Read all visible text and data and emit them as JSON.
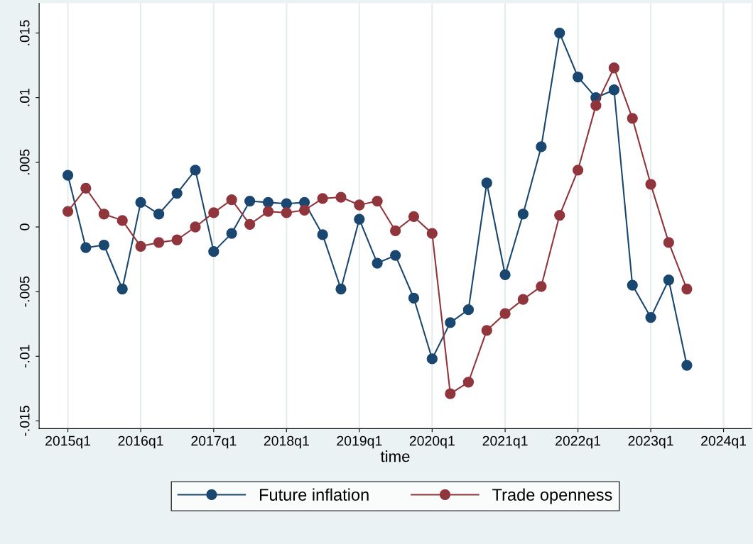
{
  "chart_data": {
    "type": "line",
    "xlabel": "time",
    "x": [
      "2015-01",
      "2015-04",
      "2015-07",
      "2015-10",
      "2016-01",
      "2016-04",
      "2016-07",
      "2016-10",
      "2017-01",
      "2017-04",
      "2017-07",
      "2017-10",
      "2018-01",
      "2018-04",
      "2018-07",
      "2018-10",
      "2019-01",
      "2019-04",
      "2019-07",
      "2019-10",
      "2020-01",
      "2020-04",
      "2020-07",
      "2020-10",
      "2021-01",
      "2021-04",
      "2021-07",
      "2021-10",
      "2022-01",
      "2022-04",
      "2022-07",
      "2022-10",
      "2023-01",
      "2023-04",
      "2023-07"
    ],
    "series": [
      {
        "name": "Future inflation",
        "color": "#1a476f",
        "values": [
          0.004,
          -0.0016,
          -0.0014,
          -0.0048,
          0.0019,
          0.001,
          0.0026,
          0.0044,
          -0.0019,
          -0.0005,
          0.002,
          0.0019,
          0.0018,
          0.0019,
          -0.0006,
          -0.0048,
          0.0006,
          -0.0028,
          -0.0022,
          -0.0055,
          -0.0102,
          -0.0074,
          -0.0064,
          0.0034,
          -0.0037,
          0.001,
          0.0062,
          0.015,
          0.0116,
          0.01,
          0.0106,
          -0.0045,
          -0.007,
          -0.0041,
          -0.0107
        ]
      },
      {
        "name": "Trade openness",
        "color": "#90353b",
        "values": [
          0.0012,
          0.003,
          0.001,
          0.0005,
          -0.0015,
          -0.0012,
          -0.001,
          0.0,
          0.0011,
          0.0021,
          0.0002,
          0.0012,
          0.0011,
          0.0013,
          0.0022,
          0.0023,
          0.0017,
          0.002,
          -0.0003,
          0.0008,
          -0.0005,
          -0.0129,
          -0.012,
          -0.008,
          -0.0067,
          -0.0056,
          -0.0046,
          0.0009,
          0.0044,
          0.0094,
          0.0123,
          0.0084,
          0.0033,
          -0.0012,
          -0.0048
        ]
      }
    ],
    "xlim": [
      "2014-08-10",
      "2024-05-20"
    ],
    "xticks": [
      {
        "value": "2015-01",
        "label": "2015q1"
      },
      {
        "value": "2016-01",
        "label": "2016q1"
      },
      {
        "value": "2017-01",
        "label": "2017q1"
      },
      {
        "value": "2018-01",
        "label": "2018q1"
      },
      {
        "value": "2019-01",
        "label": "2019q1"
      },
      {
        "value": "2020-01",
        "label": "2020q1"
      },
      {
        "value": "2021-01",
        "label": "2021q1"
      },
      {
        "value": "2022-01",
        "label": "2022q1"
      },
      {
        "value": "2023-01",
        "label": "2023q1"
      },
      {
        "value": "2024-01",
        "label": "2024q1"
      }
    ],
    "ylim": [
      -0.0156,
      0.0173
    ],
    "yticks": [
      {
        "value": -0.015,
        "label": "-.015"
      },
      {
        "value": -0.01,
        "label": "-.01"
      },
      {
        "value": -0.005,
        "label": "-.005"
      },
      {
        "value": 0,
        "label": "0"
      },
      {
        "value": 0.005,
        "label": ".005"
      },
      {
        "value": 0.01,
        "label": ".01"
      },
      {
        "value": 0.015,
        "label": ".015"
      }
    ],
    "grid": "x",
    "legend": "bottom",
    "marker": "circle",
    "line_style": "solid"
  }
}
